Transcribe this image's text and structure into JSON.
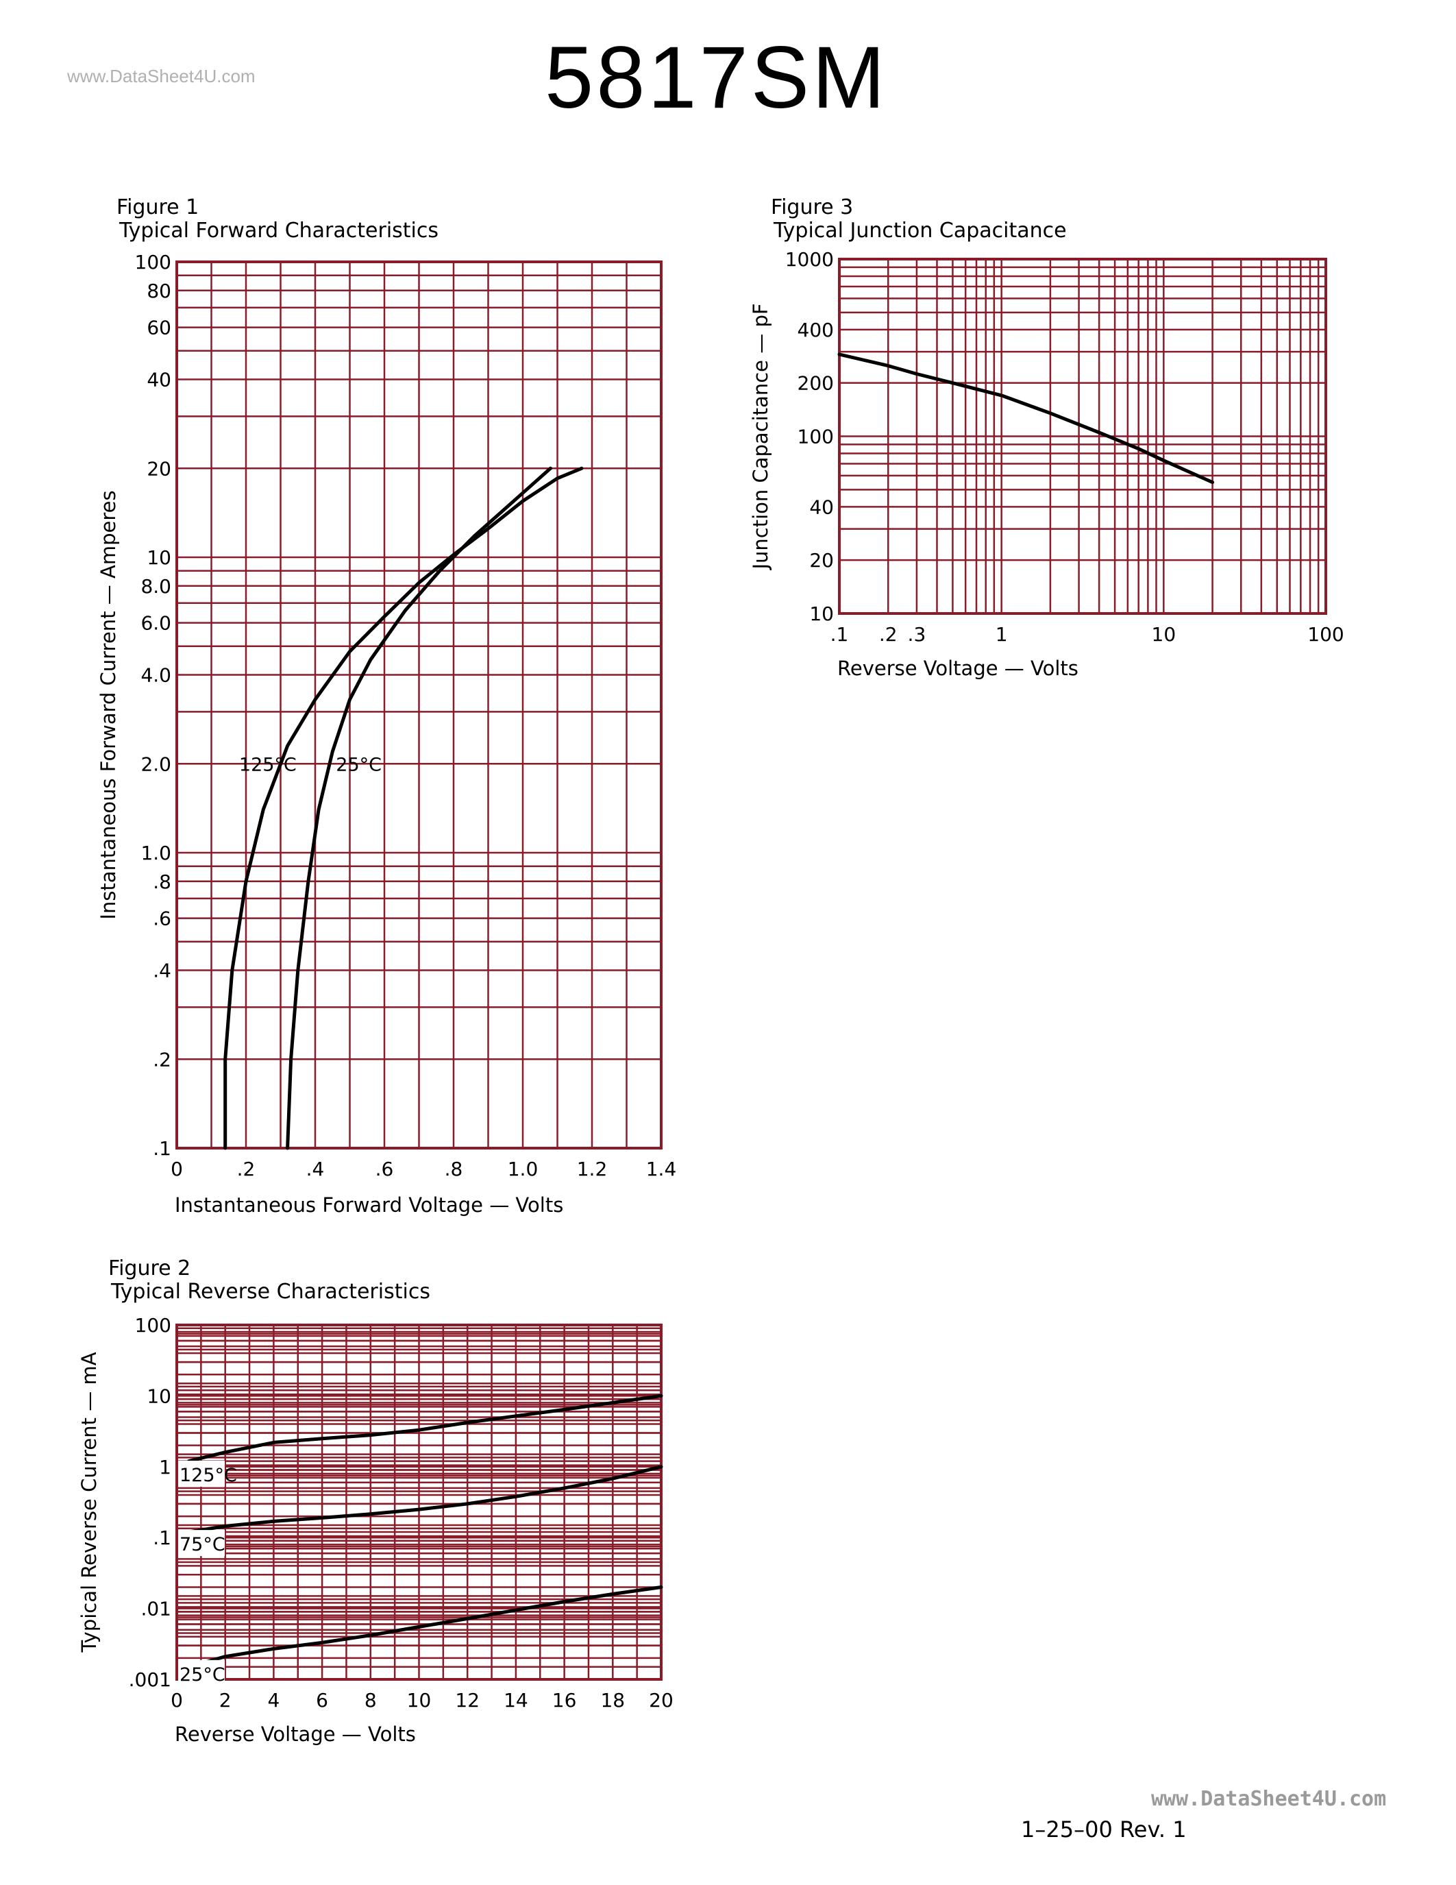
{
  "header": {
    "part_number": "5817SM",
    "watermark_top": "www.DataSheet4U.com",
    "watermark_bottom": "www.DataSheet4U.com"
  },
  "footer": {
    "revision": "1–25–00   Rev. 1"
  },
  "colors": {
    "grid": "#8a1c2a",
    "curve": "#000000",
    "text": "#000000"
  },
  "chart_data": [
    {
      "id": "fig1",
      "type": "line",
      "figure_label": "Figure 1",
      "title": "Typical Forward Characteristics",
      "xlabel": "Instantaneous Forward Voltage — Volts",
      "ylabel": "Instantaneous Forward Current — Amperes",
      "xscale": "linear",
      "yscale": "log",
      "xlim": [
        0,
        1.4
      ],
      "ylim": [
        0.1,
        100
      ],
      "xticks": [
        {
          "v": 0,
          "label": "0"
        },
        {
          "v": 0.2,
          "label": ".2"
        },
        {
          "v": 0.4,
          "label": ".4"
        },
        {
          "v": 0.6,
          "label": ".6"
        },
        {
          "v": 0.8,
          "label": ".8"
        },
        {
          "v": 1.0,
          "label": "1.0"
        },
        {
          "v": 1.2,
          "label": "1.2"
        },
        {
          "v": 1.4,
          "label": "1.4"
        }
      ],
      "yticks": [
        {
          "v": 0.1,
          "label": ".1"
        },
        {
          "v": 0.2,
          "label": ".2"
        },
        {
          "v": 0.4,
          "label": ".4"
        },
        {
          "v": 0.6,
          "label": ".6"
        },
        {
          "v": 0.8,
          "label": ".8"
        },
        {
          "v": 1,
          "label": "1.0"
        },
        {
          "v": 2,
          "label": "2.0"
        },
        {
          "v": 4,
          "label": "4.0"
        },
        {
          "v": 6,
          "label": "6.0"
        },
        {
          "v": 8,
          "label": "8.0"
        },
        {
          "v": 10,
          "label": "10"
        },
        {
          "v": 20,
          "label": "20"
        },
        {
          "v": 40,
          "label": "40"
        },
        {
          "v": 60,
          "label": "60"
        },
        {
          "v": 80,
          "label": "80"
        },
        {
          "v": 100,
          "label": "100"
        }
      ],
      "series": [
        {
          "name": "125°C",
          "label_at": [
            0.18,
            2.0
          ],
          "points": [
            [
              0.14,
              0.1
            ],
            [
              0.14,
              0.2
            ],
            [
              0.16,
              0.4
            ],
            [
              0.2,
              0.8
            ],
            [
              0.25,
              1.4
            ],
            [
              0.32,
              2.3
            ],
            [
              0.4,
              3.3
            ],
            [
              0.5,
              4.8
            ],
            [
              0.6,
              6.3
            ],
            [
              0.7,
              8.2
            ],
            [
              0.8,
              10.2
            ],
            [
              0.9,
              12.5
            ],
            [
              1.0,
              15.5
            ],
            [
              1.1,
              18.5
            ],
            [
              1.17,
              20
            ]
          ]
        },
        {
          "name": "25°C",
          "label_at": [
            0.46,
            2.0
          ],
          "points": [
            [
              0.32,
              0.1
            ],
            [
              0.33,
              0.2
            ],
            [
              0.35,
              0.4
            ],
            [
              0.38,
              0.8
            ],
            [
              0.41,
              1.4
            ],
            [
              0.45,
              2.2
            ],
            [
              0.5,
              3.3
            ],
            [
              0.56,
              4.5
            ],
            [
              0.66,
              6.6
            ],
            [
              0.76,
              9.0
            ],
            [
              0.86,
              11.8
            ],
            [
              0.96,
              15.0
            ],
            [
              1.08,
              20
            ]
          ]
        }
      ]
    },
    {
      "id": "fig2",
      "type": "line",
      "figure_label": "Figure 2",
      "title": "Typical Reverse Characteristics",
      "xlabel": "Reverse Voltage — Volts",
      "ylabel": "Typical Reverse Current — mA",
      "xscale": "linear",
      "yscale": "log",
      "xlim": [
        0,
        20
      ],
      "ylim": [
        0.001,
        100
      ],
      "xticks": [
        {
          "v": 0,
          "label": "0"
        },
        {
          "v": 2,
          "label": "2"
        },
        {
          "v": 4,
          "label": "4"
        },
        {
          "v": 6,
          "label": "6"
        },
        {
          "v": 8,
          "label": "8"
        },
        {
          "v": 10,
          "label": "10"
        },
        {
          "v": 12,
          "label": "12"
        },
        {
          "v": 14,
          "label": "14"
        },
        {
          "v": 16,
          "label": "16"
        },
        {
          "v": 18,
          "label": "18"
        },
        {
          "v": 20,
          "label": "20"
        }
      ],
      "yticks": [
        {
          "v": 0.001,
          "label": ".001"
        },
        {
          "v": 0.01,
          "label": ".01"
        },
        {
          "v": 0.1,
          "label": ".1"
        },
        {
          "v": 1,
          "label": "1"
        },
        {
          "v": 10,
          "label": "10"
        },
        {
          "v": 100,
          "label": "100"
        }
      ],
      "series": [
        {
          "name": "125°C",
          "label_at": [
            0.0,
            0.78
          ],
          "points": [
            [
              0.5,
              1.2
            ],
            [
              2,
              1.6
            ],
            [
              4,
              2.2
            ],
            [
              6,
              2.5
            ],
            [
              8,
              2.8
            ],
            [
              10,
              3.3
            ],
            [
              12,
              4.2
            ],
            [
              14,
              5.2
            ],
            [
              16,
              6.4
            ],
            [
              18,
              8.0
            ],
            [
              20,
              10
            ]
          ]
        },
        {
          "name": "75°C",
          "label_at": [
            0.0,
            0.082
          ],
          "points": [
            [
              0.5,
              0.12
            ],
            [
              2,
              0.145
            ],
            [
              4,
              0.17
            ],
            [
              6,
              0.19
            ],
            [
              8,
              0.215
            ],
            [
              10,
              0.25
            ],
            [
              12,
              0.3
            ],
            [
              14,
              0.38
            ],
            [
              16,
              0.5
            ],
            [
              18,
              0.68
            ],
            [
              20,
              1.0
            ]
          ]
        },
        {
          "name": "25°C",
          "label_at": [
            0.0,
            0.0012
          ],
          "points": [
            [
              0.5,
              0.0015
            ],
            [
              2,
              0.0021
            ],
            [
              4,
              0.0027
            ],
            [
              6,
              0.0033
            ],
            [
              8,
              0.0042
            ],
            [
              10,
              0.0055
            ],
            [
              12,
              0.0072
            ],
            [
              14,
              0.0095
            ],
            [
              16,
              0.0125
            ],
            [
              18,
              0.016
            ],
            [
              20,
              0.02
            ]
          ]
        }
      ]
    },
    {
      "id": "fig3",
      "type": "line",
      "figure_label": "Figure 3",
      "title": "Typical Junction Capacitance",
      "xlabel": "Reverse Voltage — Volts",
      "ylabel": "Junction Capacitance — pF",
      "xscale": "log",
      "yscale": "log",
      "xlim": [
        0.1,
        100
      ],
      "ylim": [
        10,
        1000
      ],
      "xticks": [
        {
          "v": 0.1,
          "label": ".1"
        },
        {
          "v": 0.2,
          "label": ".2"
        },
        {
          "v": 0.3,
          "label": ".3"
        },
        {
          "v": 1,
          "label": "1"
        },
        {
          "v": 10,
          "label": "10"
        },
        {
          "v": 100,
          "label": "100"
        }
      ],
      "yticks": [
        {
          "v": 10,
          "label": "10"
        },
        {
          "v": 20,
          "label": "20"
        },
        {
          "v": 40,
          "label": "40"
        },
        {
          "v": 100,
          "label": "100"
        },
        {
          "v": 200,
          "label": "200"
        },
        {
          "v": 400,
          "label": "400"
        },
        {
          "v": 1000,
          "label": "1000"
        }
      ],
      "series": [
        {
          "name": "",
          "points": [
            [
              0.1,
              290
            ],
            [
              0.2,
              250
            ],
            [
              0.3,
              225
            ],
            [
              0.5,
              200
            ],
            [
              1,
              170
            ],
            [
              2,
              135
            ],
            [
              4,
              105
            ],
            [
              7,
              85
            ],
            [
              10,
              73
            ],
            [
              20,
              55
            ]
          ]
        }
      ]
    }
  ]
}
